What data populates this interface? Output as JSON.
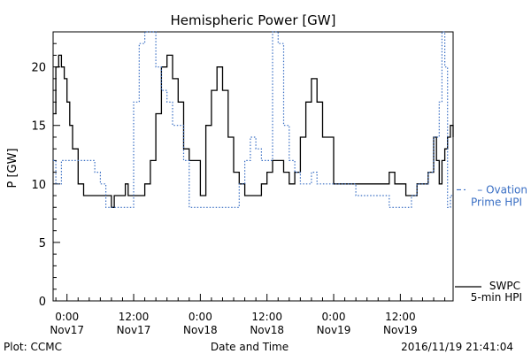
{
  "chart_data": {
    "type": "line",
    "title": "Hemispheric Power [GW]",
    "xlabel": "Date and Time",
    "ylabel": "P [GW]",
    "xlim": [
      "2016-11-16T21:30",
      "2016-11-19T21:30"
    ],
    "ylim": [
      0,
      23
    ],
    "yticks": [
      0,
      5,
      10,
      15,
      20
    ],
    "xticks": [
      {
        "time": "2016-11-17T00:00",
        "line1": "0:00",
        "line2": "Nov17"
      },
      {
        "time": "2016-11-17T12:00",
        "line1": "12:00",
        "line2": "Nov17"
      },
      {
        "time": "2016-11-18T00:00",
        "line1": "0:00",
        "line2": "Nov18"
      },
      {
        "time": "2016-11-18T12:00",
        "line1": "12:00",
        "line2": "Nov18"
      },
      {
        "time": "2016-11-19T00:00",
        "line1": "0:00",
        "line2": "Nov19"
      },
      {
        "time": "2016-11-19T12:00",
        "line1": "12:00",
        "line2": "Nov19"
      }
    ],
    "grid": false,
    "legend_position": "right",
    "series": [
      {
        "name": "SWPC 5-min HPI",
        "legend_lines": [
          "SWPC",
          "5-min HPI"
        ],
        "color": "#000000",
        "style": "solid",
        "x": [
          "2016-11-16T21:30",
          "2016-11-16T22:00",
          "2016-11-16T22:30",
          "2016-11-16T23:00",
          "2016-11-16T23:30",
          "2016-11-17T00:00",
          "2016-11-17T00:30",
          "2016-11-17T01:00",
          "2016-11-17T02:00",
          "2016-11-17T03:00",
          "2016-11-17T04:00",
          "2016-11-17T05:00",
          "2016-11-17T06:00",
          "2016-11-17T07:00",
          "2016-11-17T08:00",
          "2016-11-17T08:30",
          "2016-11-17T09:00",
          "2016-11-17T10:00",
          "2016-11-17T10:30",
          "2016-11-17T11:00",
          "2016-11-17T12:00",
          "2016-11-17T13:00",
          "2016-11-17T14:00",
          "2016-11-17T15:00",
          "2016-11-17T16:00",
          "2016-11-17T17:00",
          "2016-11-17T18:00",
          "2016-11-17T19:00",
          "2016-11-17T20:00",
          "2016-11-17T21:00",
          "2016-11-17T22:00",
          "2016-11-17T23:00",
          "2016-11-18T00:00",
          "2016-11-18T01:00",
          "2016-11-18T02:00",
          "2016-11-18T03:00",
          "2016-11-18T04:00",
          "2016-11-18T05:00",
          "2016-11-18T06:00",
          "2016-11-18T07:00",
          "2016-11-18T08:00",
          "2016-11-18T09:00",
          "2016-11-18T10:00",
          "2016-11-18T11:00",
          "2016-11-18T12:00",
          "2016-11-18T13:00",
          "2016-11-18T14:00",
          "2016-11-18T15:00",
          "2016-11-18T16:00",
          "2016-11-18T17:00",
          "2016-11-18T18:00",
          "2016-11-18T19:00",
          "2016-11-18T20:00",
          "2016-11-18T21:00",
          "2016-11-18T22:00",
          "2016-11-19T00:00",
          "2016-11-19T04:00",
          "2016-11-19T06:00",
          "2016-11-19T07:00",
          "2016-11-19T08:00",
          "2016-11-19T09:00",
          "2016-11-19T10:00",
          "2016-11-19T11:00",
          "2016-11-19T12:00",
          "2016-11-19T13:00",
          "2016-11-19T14:00",
          "2016-11-19T15:00",
          "2016-11-19T16:00",
          "2016-11-19T17:00",
          "2016-11-19T18:00",
          "2016-11-19T18:30",
          "2016-11-19T19:00",
          "2016-11-19T19:30",
          "2016-11-19T20:00",
          "2016-11-19T20:30",
          "2016-11-19T21:00",
          "2016-11-19T21:30"
        ],
        "y": [
          16,
          20,
          21,
          20,
          19,
          17,
          15,
          13,
          10,
          9,
          9,
          9,
          9,
          9,
          8,
          9,
          9,
          9,
          10,
          9,
          9,
          9,
          10,
          12,
          16,
          20,
          21,
          19,
          17,
          13,
          12,
          12,
          9,
          15,
          18,
          20,
          18,
          14,
          11,
          10,
          9,
          9,
          9,
          10,
          11,
          12,
          12,
          11,
          10,
          11,
          14,
          17,
          19,
          17,
          14,
          10,
          10,
          10,
          10,
          10,
          10,
          11,
          10,
          10,
          9,
          9,
          10,
          10,
          11,
          14,
          12,
          10,
          12,
          13,
          14,
          15,
          14
        ]
      },
      {
        "name": "Ovation Prime HPI",
        "legend_lines": [
          "Ovation",
          "Prime HPI"
        ],
        "color": "#3a6fc4",
        "style": "dotted",
        "x": [
          "2016-11-16T21:30",
          "2016-11-16T22:00",
          "2016-11-16T23:00",
          "2016-11-16T23:30",
          "2016-11-17T00:00",
          "2016-11-17T01:00",
          "2016-11-17T02:00",
          "2016-11-17T03:00",
          "2016-11-17T04:00",
          "2016-11-17T05:00",
          "2016-11-17T06:00",
          "2016-11-17T07:00",
          "2016-11-17T08:00",
          "2016-11-17T09:00",
          "2016-11-17T10:00",
          "2016-11-17T11:00",
          "2016-11-17T12:00",
          "2016-11-17T13:00",
          "2016-11-17T14:00",
          "2016-11-17T15:00",
          "2016-11-17T16:00",
          "2016-11-17T17:00",
          "2016-11-17T18:00",
          "2016-11-17T19:00",
          "2016-11-17T20:00",
          "2016-11-17T21:00",
          "2016-11-17T22:00",
          "2016-11-18T00:00",
          "2016-11-18T06:00",
          "2016-11-18T07:00",
          "2016-11-18T08:00",
          "2016-11-18T09:00",
          "2016-11-18T10:00",
          "2016-11-18T11:00",
          "2016-11-18T12:00",
          "2016-11-18T13:00",
          "2016-11-18T14:00",
          "2016-11-18T15:00",
          "2016-11-18T16:00",
          "2016-11-18T17:00",
          "2016-11-18T18:00",
          "2016-11-18T19:00",
          "2016-11-18T20:00",
          "2016-11-18T21:00",
          "2016-11-19T00:00",
          "2016-11-19T04:00",
          "2016-11-19T06:00",
          "2016-11-19T08:00",
          "2016-11-19T10:00",
          "2016-11-19T12:00",
          "2016-11-19T14:00",
          "2016-11-19T15:00",
          "2016-11-19T16:00",
          "2016-11-19T17:00",
          "2016-11-19T18:00",
          "2016-11-19T19:00",
          "2016-11-19T19:30",
          "2016-11-19T20:00",
          "2016-11-19T20:30",
          "2016-11-19T21:00",
          "2016-11-19T21:30"
        ],
        "y": [
          12,
          10,
          12,
          12,
          12,
          12,
          12,
          12,
          12,
          11,
          10,
          8,
          8,
          8,
          8,
          8,
          17,
          22,
          23,
          23,
          20,
          18,
          17,
          15,
          15,
          12,
          8,
          8,
          8,
          10,
          12,
          14,
          13,
          12,
          12,
          23,
          22,
          15,
          12,
          11,
          10,
          10,
          11,
          10,
          10,
          9,
          9,
          9,
          8,
          8,
          9,
          10,
          10,
          11,
          14,
          17,
          23,
          20,
          8,
          9,
          9
        ]
      }
    ]
  },
  "footer": {
    "left": "Plot: CCMC",
    "center": "Date and Time",
    "right": "2016/11/19 21:41:04"
  }
}
